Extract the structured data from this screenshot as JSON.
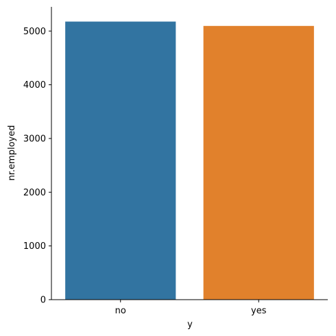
{
  "chart_data": {
    "type": "bar",
    "xlabel": "y",
    "ylabel": "nr.employed",
    "categories": [
      "no",
      "yes"
    ],
    "values": [
      5176,
      5095
    ],
    "colors": [
      "#3274a1",
      "#e1812c"
    ],
    "ylim": [
      0,
      5450
    ],
    "yticks": [
      0,
      1000,
      2000,
      3000,
      4000,
      5000
    ],
    "grid": false,
    "legend": "none"
  }
}
